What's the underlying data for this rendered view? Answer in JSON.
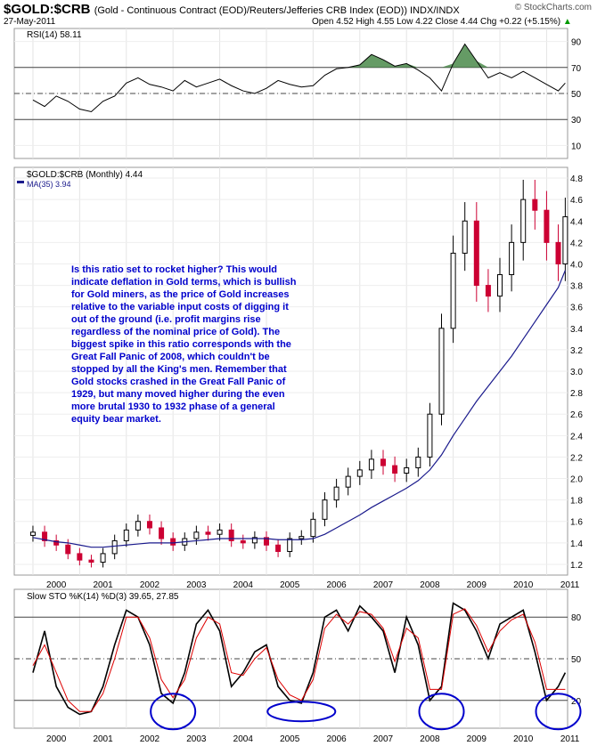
{
  "header": {
    "symbol": "$GOLD:$CRB",
    "description": "(Gold - Continuous Contract (EOD)/Reuters/Jefferies CRB Index (EOD))  INDX/INDX",
    "date": "27-May-2011",
    "ohlc": "Open 4.52  High 4.55  Low 4.22  Close 4.44  Chg +0.22 (+5.15%)",
    "change_arrow": "▲",
    "brand": "© StockCharts.com"
  },
  "annotation": "Is this ratio set to rocket higher? This would indicate deflation in Gold terms, which is bullish for Gold miners, as the price of Gold increases relative to the variable input costs of digging it out of the ground (i.e. profit margins rise regardless of the nominal price of Gold). The biggest spike in this ratio corresponds with the Great Fall Panic of 2008, which couldn't be stopped by all the King's men. Remember that Gold stocks crashed in the Great Fall Panic of 1929, but many moved higher during the even more brutal 1930 to 1932 phase of a general equity bear market.",
  "colors": {
    "up_candle": "#000000",
    "down_candle": "#cc0033",
    "ma_line": "#1a1a8c",
    "rsi_line": "#000000",
    "rsi_fill": "#4a8a4a",
    "k_line": "#000000",
    "d_line": "#dd0000",
    "circle": "#0000cc",
    "annotation_text": "#0000cc"
  },
  "chart_data": [
    {
      "type": "line",
      "name": "rsi-panel",
      "label": "RSI(14) 58.11",
      "ylim": [
        0,
        100
      ],
      "yticks": [
        10,
        30,
        50,
        70,
        90
      ],
      "reference_lines": [
        30,
        50,
        70
      ],
      "x": [
        2000.0,
        2000.25,
        2000.5,
        2000.75,
        2001.0,
        2001.25,
        2001.5,
        2001.75,
        2002.0,
        2002.25,
        2002.5,
        2002.75,
        2003.0,
        2003.25,
        2003.5,
        2003.75,
        2004.0,
        2004.25,
        2004.5,
        2004.75,
        2005.0,
        2005.25,
        2005.5,
        2005.75,
        2006.0,
        2006.25,
        2006.5,
        2006.75,
        2007.0,
        2007.25,
        2007.5,
        2007.75,
        2008.0,
        2008.25,
        2008.5,
        2008.75,
        2009.0,
        2009.25,
        2009.5,
        2009.75,
        2010.0,
        2010.25,
        2010.5,
        2010.75,
        2011.0,
        2011.25,
        2011.4
      ],
      "values": [
        45,
        40,
        48,
        44,
        38,
        36,
        44,
        48,
        58,
        62,
        57,
        55,
        52,
        60,
        55,
        58,
        61,
        56,
        52,
        50,
        54,
        60,
        57,
        55,
        56,
        64,
        69,
        70,
        72,
        80,
        76,
        71,
        73,
        68,
        62,
        52,
        73,
        88,
        75,
        62,
        66,
        62,
        67,
        62,
        57,
        52,
        58
      ]
    },
    {
      "type": "candlestick",
      "name": "price-panel",
      "label": "$GOLD:$CRB (Monthly) 4.44",
      "ma_label": "MA(35) 3.94",
      "ylim": [
        1.1,
        4.9
      ],
      "yticks": [
        1.2,
        1.4,
        1.6,
        1.8,
        2.0,
        2.2,
        2.4,
        2.6,
        2.8,
        3.0,
        3.2,
        3.4,
        3.6,
        3.8,
        4.0,
        4.2,
        4.4,
        4.6,
        4.8
      ],
      "x": [
        2000.0,
        2000.25,
        2000.5,
        2000.75,
        2001.0,
        2001.25,
        2001.5,
        2001.75,
        2002.0,
        2002.25,
        2002.5,
        2002.75,
        2003.0,
        2003.25,
        2003.5,
        2003.75,
        2004.0,
        2004.25,
        2004.5,
        2004.75,
        2005.0,
        2005.25,
        2005.5,
        2005.75,
        2006.0,
        2006.25,
        2006.5,
        2006.75,
        2007.0,
        2007.25,
        2007.5,
        2007.75,
        2008.0,
        2008.25,
        2008.5,
        2008.75,
        2009.0,
        2009.25,
        2009.5,
        2009.75,
        2010.0,
        2010.25,
        2010.5,
        2010.75,
        2011.0,
        2011.25,
        2011.4
      ],
      "close": [
        1.5,
        1.42,
        1.38,
        1.3,
        1.24,
        1.22,
        1.3,
        1.42,
        1.52,
        1.6,
        1.54,
        1.44,
        1.38,
        1.44,
        1.5,
        1.48,
        1.52,
        1.42,
        1.4,
        1.45,
        1.38,
        1.32,
        1.44,
        1.46,
        1.62,
        1.8,
        1.92,
        2.02,
        2.08,
        2.18,
        2.12,
        2.05,
        2.1,
        2.2,
        2.6,
        3.4,
        4.1,
        4.4,
        3.8,
        3.7,
        3.9,
        4.2,
        4.6,
        4.5,
        4.2,
        4.0,
        4.44
      ],
      "ma": [
        1.45,
        1.43,
        1.41,
        1.4,
        1.38,
        1.36,
        1.36,
        1.37,
        1.38,
        1.39,
        1.4,
        1.4,
        1.4,
        1.41,
        1.42,
        1.43,
        1.44,
        1.44,
        1.44,
        1.44,
        1.44,
        1.43,
        1.43,
        1.43,
        1.44,
        1.48,
        1.54,
        1.6,
        1.66,
        1.73,
        1.79,
        1.85,
        1.91,
        1.98,
        2.08,
        2.22,
        2.4,
        2.56,
        2.72,
        2.86,
        3.0,
        3.14,
        3.3,
        3.46,
        3.62,
        3.78,
        3.94
      ]
    },
    {
      "type": "line",
      "name": "stochastic-panel",
      "label": "Slow STO %K(14) %D(3) 39.65, 27.85",
      "ylim": [
        0,
        100
      ],
      "yticks": [
        20,
        50,
        80
      ],
      "x": [
        2000.0,
        2000.25,
        2000.5,
        2000.75,
        2001.0,
        2001.25,
        2001.5,
        2001.75,
        2002.0,
        2002.25,
        2002.5,
        2002.75,
        2003.0,
        2003.25,
        2003.5,
        2003.75,
        2004.0,
        2004.25,
        2004.5,
        2004.75,
        2005.0,
        2005.25,
        2005.5,
        2005.75,
        2006.0,
        2006.25,
        2006.5,
        2006.75,
        2007.0,
        2007.25,
        2007.5,
        2007.75,
        2008.0,
        2008.25,
        2008.5,
        2008.75,
        2009.0,
        2009.25,
        2009.5,
        2009.75,
        2010.0,
        2010.25,
        2010.5,
        2010.75,
        2011.0,
        2011.25,
        2011.4
      ],
      "series": [
        {
          "name": "%K",
          "values": [
            40,
            70,
            30,
            15,
            10,
            12,
            30,
            60,
            85,
            80,
            60,
            25,
            18,
            40,
            75,
            85,
            70,
            30,
            40,
            55,
            60,
            30,
            20,
            18,
            40,
            80,
            85,
            70,
            88,
            80,
            70,
            40,
            80,
            60,
            20,
            30,
            90,
            85,
            70,
            50,
            75,
            80,
            85,
            55,
            20,
            30,
            40
          ]
        },
        {
          "name": "%D",
          "values": [
            45,
            60,
            40,
            20,
            12,
            12,
            25,
            50,
            80,
            80,
            65,
            35,
            22,
            35,
            65,
            80,
            75,
            40,
            38,
            50,
            58,
            35,
            24,
            20,
            35,
            72,
            82,
            75,
            84,
            82,
            72,
            48,
            72,
            65,
            28,
            28,
            82,
            86,
            74,
            55,
            70,
            78,
            82,
            62,
            28,
            28,
            28
          ]
        }
      ],
      "highlight_circles": [
        "2003",
        "2005.75",
        "2008.75",
        "2011.25"
      ]
    }
  ],
  "x_axis": {
    "labels": [
      "2000",
      "2001",
      "2002",
      "2003",
      "2004",
      "2005",
      "2006",
      "2007",
      "2008",
      "2009",
      "2010",
      "2011"
    ]
  }
}
